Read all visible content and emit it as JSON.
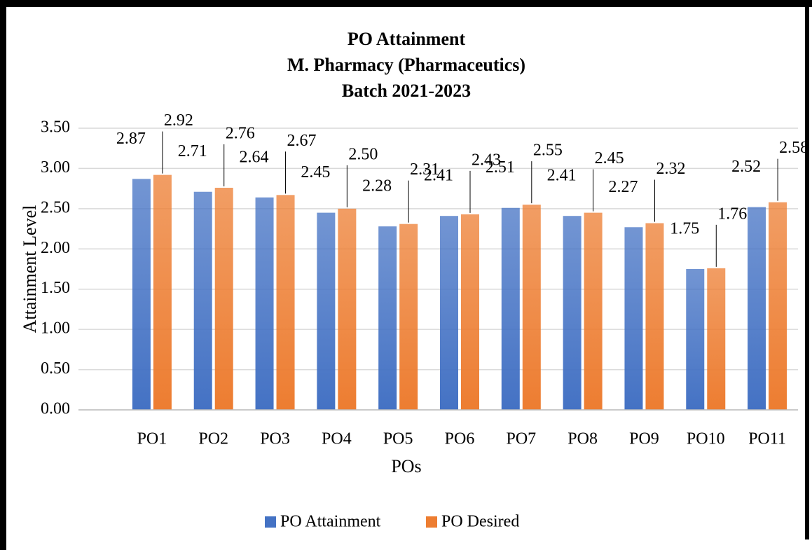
{
  "chart_data": {
    "type": "bar",
    "title": [
      "PO Attainment",
      "M. Pharmacy (Pharmaceutics)",
      "Batch 2021-2023"
    ],
    "x_label": "POs",
    "y_label": "Attainment Level",
    "categories": [
      "PO1",
      "PO2",
      "PO3",
      "PO4",
      "PO5",
      "PO6",
      "PO7",
      "PO8",
      "PO9",
      "PO10",
      "PO11"
    ],
    "series": [
      {
        "name": "PO Attainment",
        "color": "#4472c4",
        "values": [
          2.87,
          2.71,
          2.64,
          2.45,
          2.28,
          2.41,
          2.51,
          2.41,
          2.27,
          1.75,
          2.52
        ],
        "value_labels": [
          "2.87",
          "2.71",
          "2.64",
          "2.45",
          "2.28",
          "2.41",
          "2.51",
          "2.41",
          "2.27",
          "1.75",
          "2.52"
        ]
      },
      {
        "name": "PO Desired",
        "color": "#ed7d31",
        "values": [
          2.92,
          2.76,
          2.67,
          2.5,
          2.31,
          2.43,
          2.55,
          2.45,
          2.32,
          1.76,
          2.58
        ],
        "value_labels": [
          "2.92",
          "2.76",
          "2.67",
          "2.50",
          "2.31",
          "2.43",
          "2.55",
          "2.45",
          "2.32",
          "1.76",
          "2.58"
        ]
      }
    ],
    "ylim": [
      0,
      3.5
    ],
    "yticks": [
      {
        "value": 0,
        "label": "0.00"
      },
      {
        "value": 0.5,
        "label": "0.50"
      },
      {
        "value": 1,
        "label": "1.00"
      },
      {
        "value": 1.5,
        "label": "1.50"
      },
      {
        "value": 2,
        "label": "2.00"
      },
      {
        "value": 2.5,
        "label": "2.50"
      },
      {
        "value": 3,
        "label": "3.00"
      },
      {
        "value": 3.5,
        "label": "3.50"
      }
    ],
    "grid": true,
    "legend": "bottom"
  }
}
